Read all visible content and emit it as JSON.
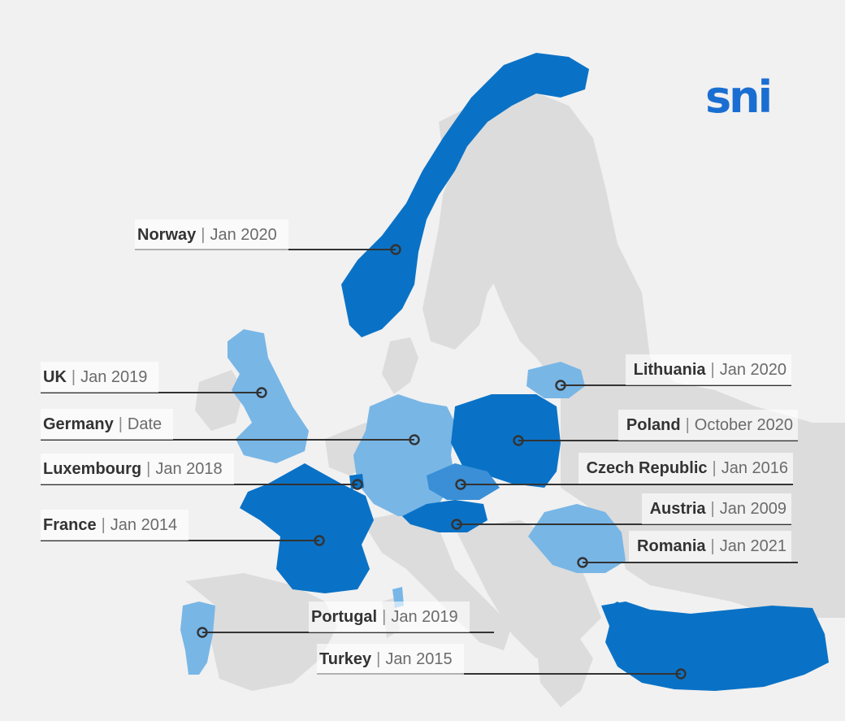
{
  "brand": {
    "logo_text": "sni",
    "color": "#1a6ed1"
  },
  "legend_colors": {
    "primary": "#0a72c6",
    "secondary": "#78b6e6",
    "intermediate": "#3a8fd6",
    "base_land": "#dcdcdc",
    "background": "#f1f1f1"
  },
  "countries": [
    {
      "id": "norway",
      "name": "Norway",
      "date": "Jan 2020",
      "shade": "primary"
    },
    {
      "id": "uk",
      "name": "UK",
      "date": "Jan 2019",
      "shade": "secondary"
    },
    {
      "id": "germany",
      "name": "Germany",
      "date": "Date",
      "shade": "secondary"
    },
    {
      "id": "luxembourg",
      "name": "Luxembourg",
      "date": "Jan 2018",
      "shade": "primary"
    },
    {
      "id": "france",
      "name": "France",
      "date": "Jan 2014",
      "shade": "primary"
    },
    {
      "id": "lithuania",
      "name": "Lithuania",
      "date": "Jan 2020",
      "shade": "secondary"
    },
    {
      "id": "poland",
      "name": "Poland",
      "date": "October 2020",
      "shade": "primary"
    },
    {
      "id": "czech",
      "name": "Czech Republic",
      "date": "Jan 2016",
      "shade": "intermediate"
    },
    {
      "id": "austria",
      "name": "Austria",
      "date": "Jan 2009",
      "shade": "primary"
    },
    {
      "id": "romania",
      "name": "Romania",
      "date": "Jan 2021",
      "shade": "secondary"
    },
    {
      "id": "portugal",
      "name": "Portugal",
      "date": "Jan 2019",
      "shade": "secondary"
    },
    {
      "id": "turkey",
      "name": "Turkey",
      "date": "Jan 2015",
      "shade": "primary"
    }
  ]
}
